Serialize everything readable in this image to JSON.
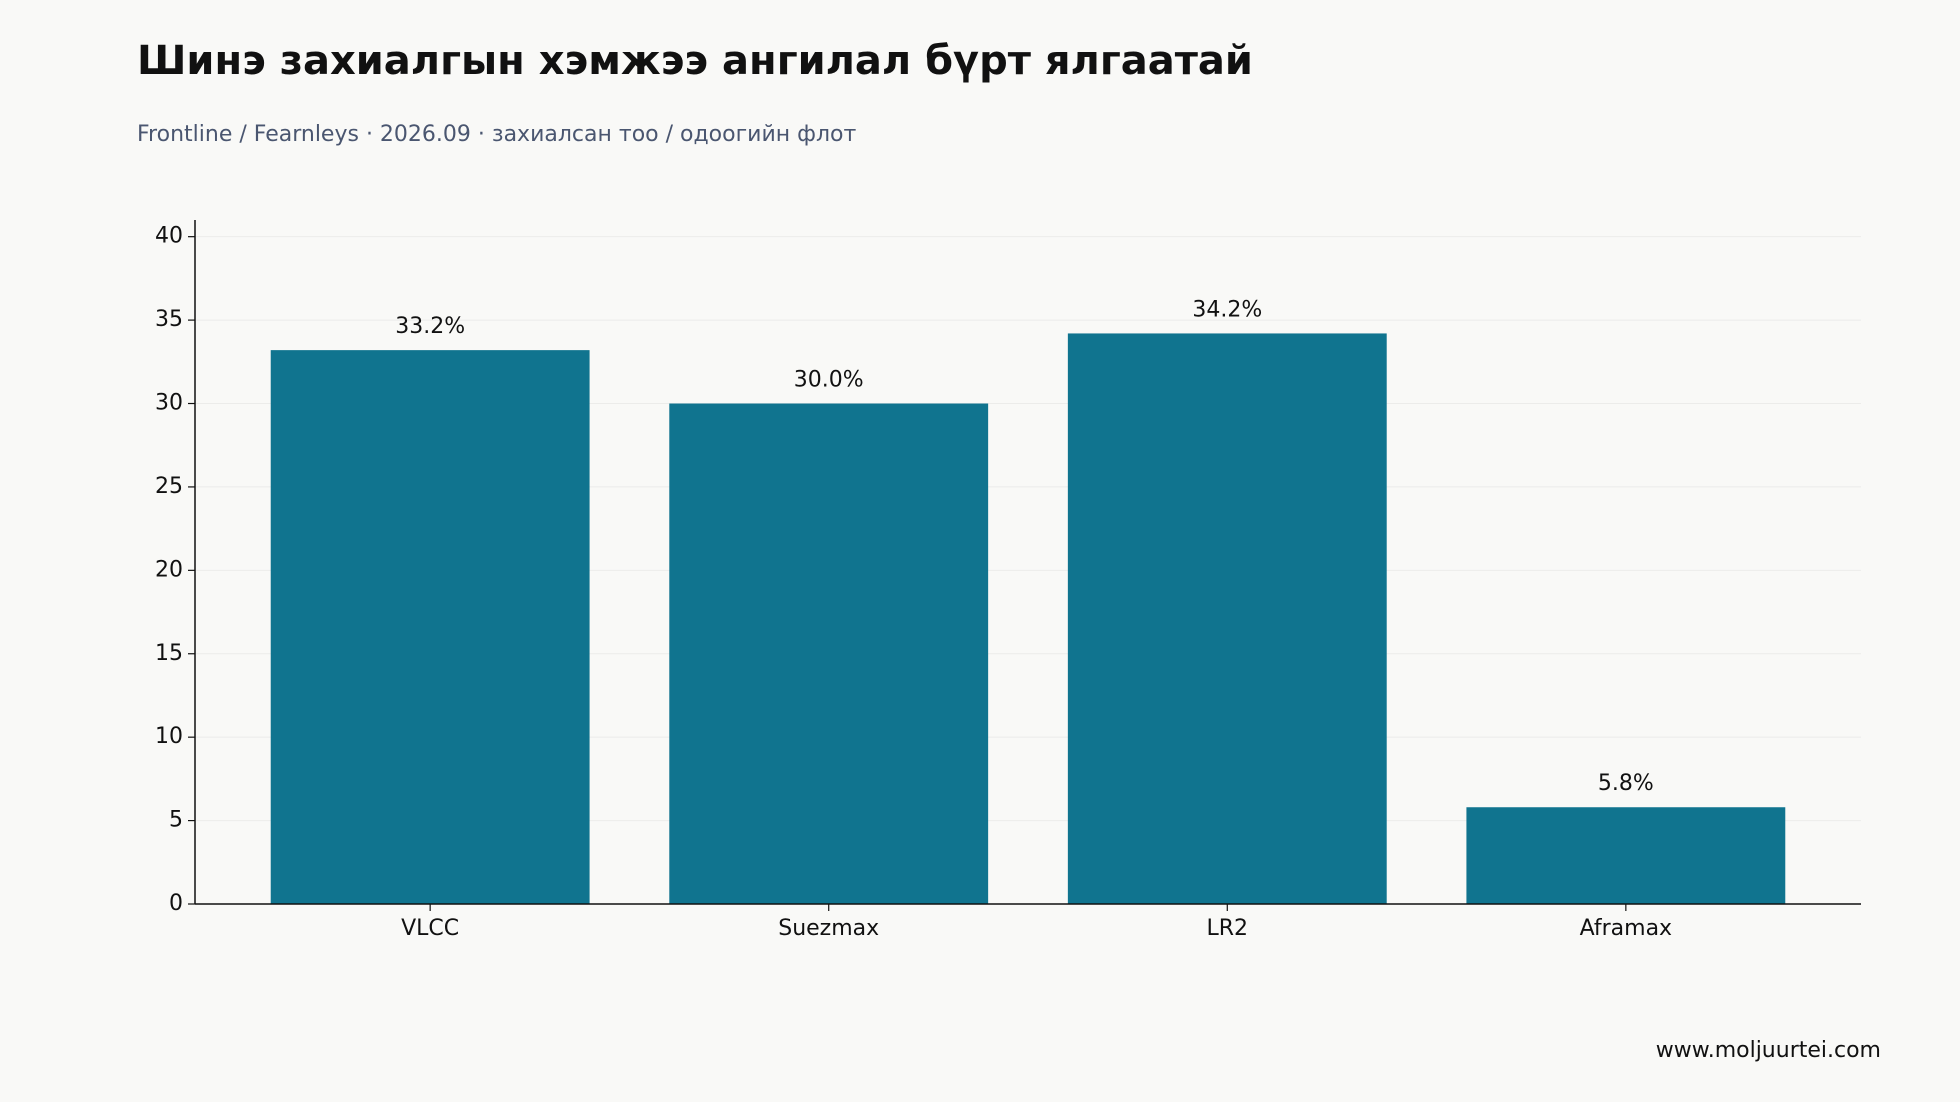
{
  "chart_data": {
    "type": "bar",
    "title": "Шинэ захиалгын хэмжээ ангилал бүрт ялгаатай",
    "subtitle": "Frontline / Fearnleys · 2026.09 · захиалсан тоо / одоогийн флот",
    "source": "www.moljuurtei.com",
    "categories": [
      "VLCC",
      "Suezmax",
      "LR2",
      "Aframax"
    ],
    "values": [
      33.2,
      30.0,
      34.2,
      5.8
    ],
    "value_labels": [
      "33.2%",
      "30.0%",
      "34.2%",
      "5.8%"
    ],
    "color": "#10748f",
    "ylim": [
      0,
      41
    ],
    "yticks": [
      0,
      5,
      10,
      15,
      20,
      25,
      30,
      35,
      40
    ],
    "grid": true
  }
}
